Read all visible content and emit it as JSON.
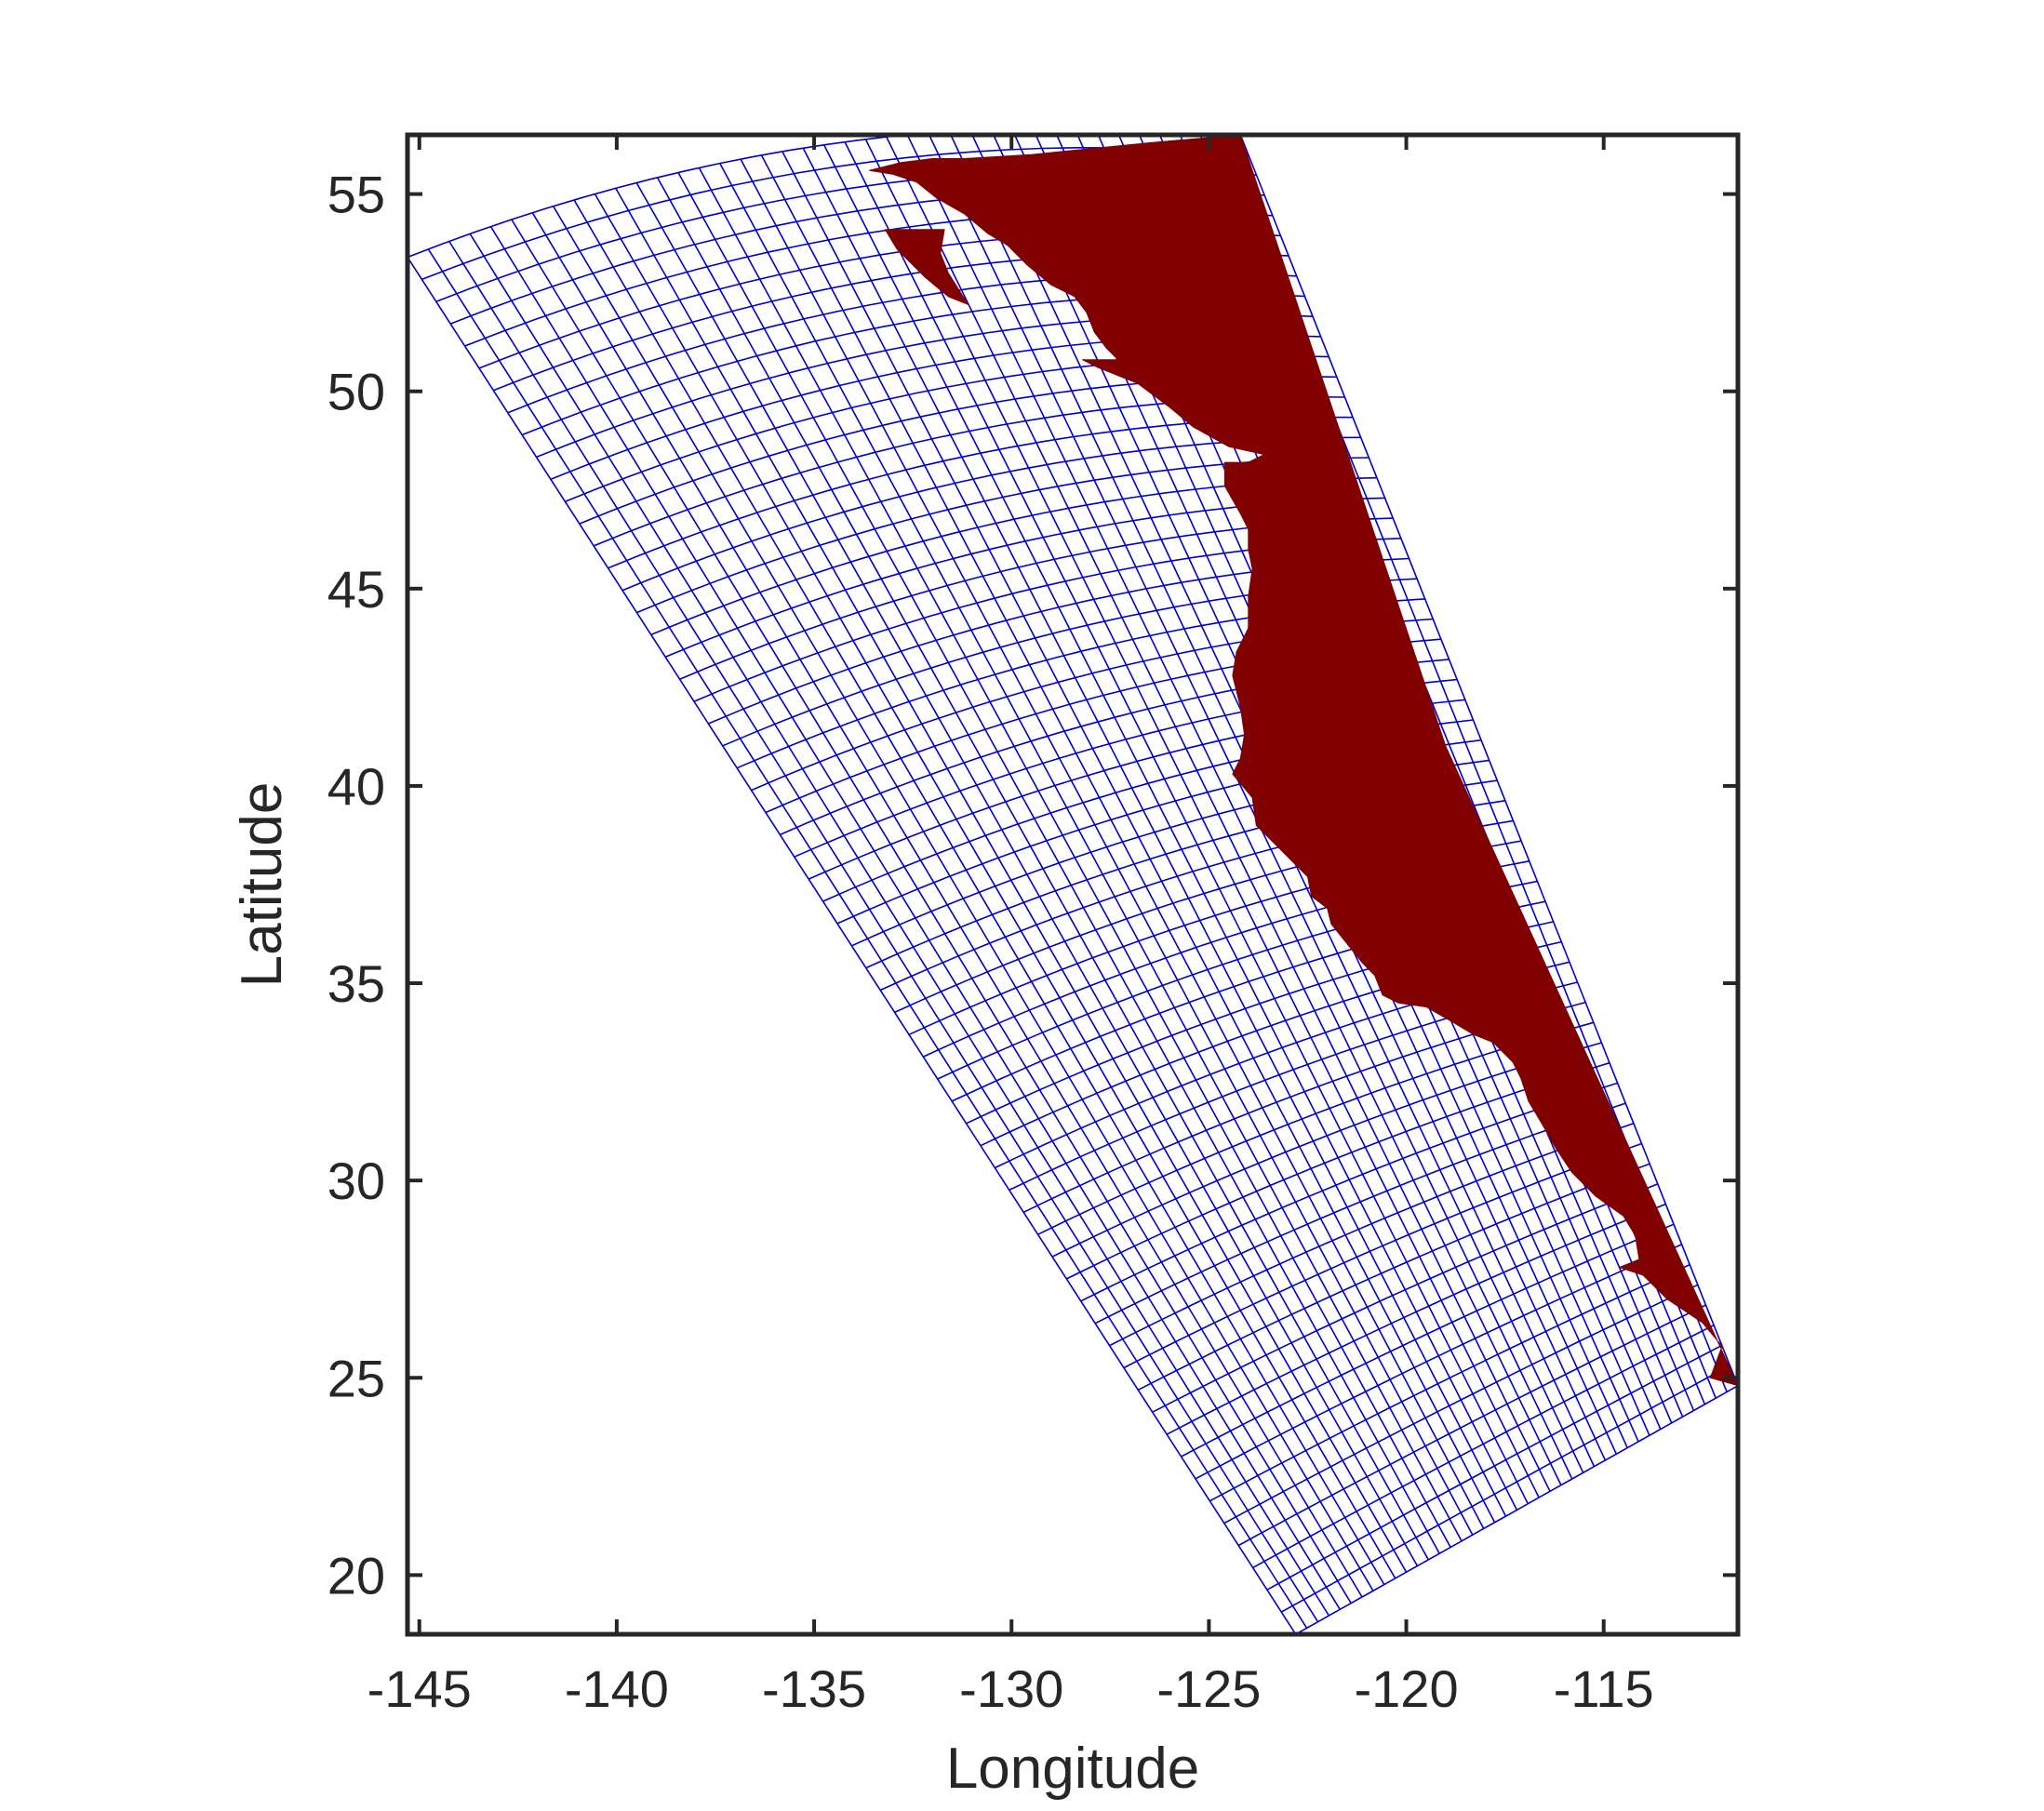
{
  "chart_data": {
    "type": "map",
    "xlabel": "Longitude",
    "ylabel": "Latitude",
    "xlim": [
      -145.3,
      -111.6
    ],
    "ylim": [
      18.5,
      56.5
    ],
    "xticks": [
      -145,
      -140,
      -135,
      -130,
      -125,
      -120,
      -115
    ],
    "xtick_labels": [
      "-145",
      "-140",
      "-135",
      "-130",
      "-125",
      "-120",
      "-115"
    ],
    "yticks": [
      20,
      25,
      30,
      35,
      40,
      45,
      50,
      55
    ],
    "ytick_labels": [
      "20",
      "25",
      "30",
      "35",
      "40",
      "45",
      "50",
      "55"
    ],
    "grid_domain": {
      "corners_lonlat": {
        "north_west": [
          -145.3,
          53.4
        ],
        "north_east": [
          -124.2,
          56.5
        ],
        "south_east": [
          -111.6,
          24.8
        ],
        "south_west": [
          -122.8,
          18.5
        ]
      },
      "rows": 62,
      "columns": 40,
      "mesh_color": "#0000c8"
    },
    "land_mask": {
      "color": "#800000",
      "coast_lonlat": [
        [
          -124.2,
          56.5
        ],
        [
          -126.5,
          56.3
        ],
        [
          -129.5,
          56.0
        ],
        [
          -131.2,
          55.9
        ],
        [
          -132.0,
          55.9
        ],
        [
          -132.8,
          55.8
        ],
        [
          -133.6,
          55.6
        ],
        [
          -133.0,
          55.5
        ],
        [
          -132.4,
          55.3
        ],
        [
          -131.9,
          54.9
        ],
        [
          -131.2,
          54.5
        ],
        [
          -130.6,
          54.0
        ],
        [
          -130.1,
          53.7
        ],
        [
          -129.6,
          53.2
        ],
        [
          -129.0,
          52.7
        ],
        [
          -128.4,
          52.4
        ],
        [
          -128.1,
          52.0
        ],
        [
          -127.9,
          51.5
        ],
        [
          -127.6,
          51.1
        ],
        [
          -127.3,
          50.8
        ],
        [
          -128.2,
          50.8
        ],
        [
          -127.8,
          50.6
        ],
        [
          -126.8,
          50.2
        ],
        [
          -126.0,
          49.6
        ],
        [
          -125.4,
          49.1
        ],
        [
          -124.5,
          48.6
        ],
        [
          -123.6,
          48.4
        ],
        [
          -124.0,
          48.2
        ],
        [
          -124.6,
          48.2
        ],
        [
          -124.6,
          47.6
        ],
        [
          -124.2,
          46.9
        ],
        [
          -124.0,
          46.5
        ],
        [
          -124.0,
          46.0
        ],
        [
          -123.9,
          45.5
        ],
        [
          -124.0,
          44.8
        ],
        [
          -124.0,
          44.0
        ],
        [
          -124.3,
          43.4
        ],
        [
          -124.4,
          42.8
        ],
        [
          -124.2,
          42.0
        ],
        [
          -124.1,
          41.3
        ],
        [
          -124.2,
          40.7
        ],
        [
          -124.4,
          40.3
        ],
        [
          -123.9,
          39.7
        ],
        [
          -123.8,
          39.0
        ],
        [
          -123.2,
          38.4
        ],
        [
          -122.8,
          38.0
        ],
        [
          -122.5,
          37.7
        ],
        [
          -122.4,
          37.2
        ],
        [
          -122.0,
          36.9
        ],
        [
          -121.9,
          36.5
        ],
        [
          -121.5,
          36.0
        ],
        [
          -121.1,
          35.5
        ],
        [
          -120.8,
          35.2
        ],
        [
          -120.6,
          34.7
        ],
        [
          -120.2,
          34.5
        ],
        [
          -119.5,
          34.4
        ],
        [
          -118.8,
          34.0
        ],
        [
          -118.3,
          33.7
        ],
        [
          -117.8,
          33.5
        ],
        [
          -117.3,
          33.0
        ],
        [
          -117.1,
          32.6
        ],
        [
          -116.9,
          32.0
        ],
        [
          -116.6,
          31.5
        ],
        [
          -116.2,
          30.8
        ],
        [
          -115.8,
          30.2
        ],
        [
          -115.2,
          29.6
        ],
        [
          -114.5,
          29.1
        ],
        [
          -114.2,
          28.6
        ],
        [
          -114.1,
          28.0
        ],
        [
          -114.6,
          27.8
        ],
        [
          -114.0,
          27.6
        ],
        [
          -113.4,
          27.0
        ],
        [
          -112.5,
          26.4
        ],
        [
          -112.0,
          25.8
        ],
        [
          -112.3,
          25.0
        ],
        [
          -111.6,
          24.8
        ],
        [
          -119.0,
          41.0
        ]
      ],
      "islands_lonlat": [
        [
          [
            -133.2,
            54.1
          ],
          [
            -131.7,
            54.1
          ],
          [
            -131.8,
            53.5
          ],
          [
            -131.6,
            53.0
          ],
          [
            -131.1,
            52.2
          ],
          [
            -131.6,
            52.4
          ],
          [
            -132.2,
            52.9
          ],
          [
            -132.9,
            53.6
          ]
        ],
        [
          [
            -123.2,
            48.8
          ],
          [
            -122.8,
            48.7
          ],
          [
            -122.7,
            48.3
          ],
          [
            -123.1,
            48.2
          ]
        ]
      ]
    }
  }
}
